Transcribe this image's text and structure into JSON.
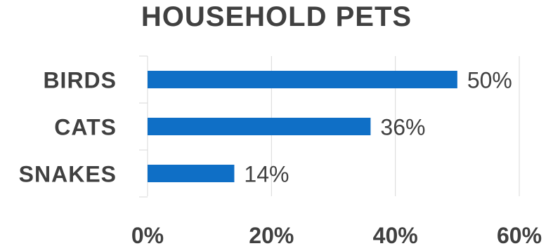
{
  "chart_data": {
    "type": "bar",
    "orientation": "horizontal",
    "title": "HOUSEHOLD PETS",
    "categories": [
      "BIRDS",
      "CATS",
      "SNAKES"
    ],
    "values": [
      50,
      36,
      14
    ],
    "data_labels": [
      "50%",
      "36%",
      "14%"
    ],
    "xlabel": "",
    "ylabel": "",
    "xlim": [
      0,
      60
    ],
    "x_ticks": [
      0,
      20,
      40,
      60
    ],
    "x_tick_labels": [
      "0%",
      "20%",
      "40%",
      "60%"
    ],
    "grid": true,
    "legend": "none",
    "bar_color": "#0F6FC6",
    "gridline_color": "#D9D9D9",
    "text_color": "#404040"
  }
}
